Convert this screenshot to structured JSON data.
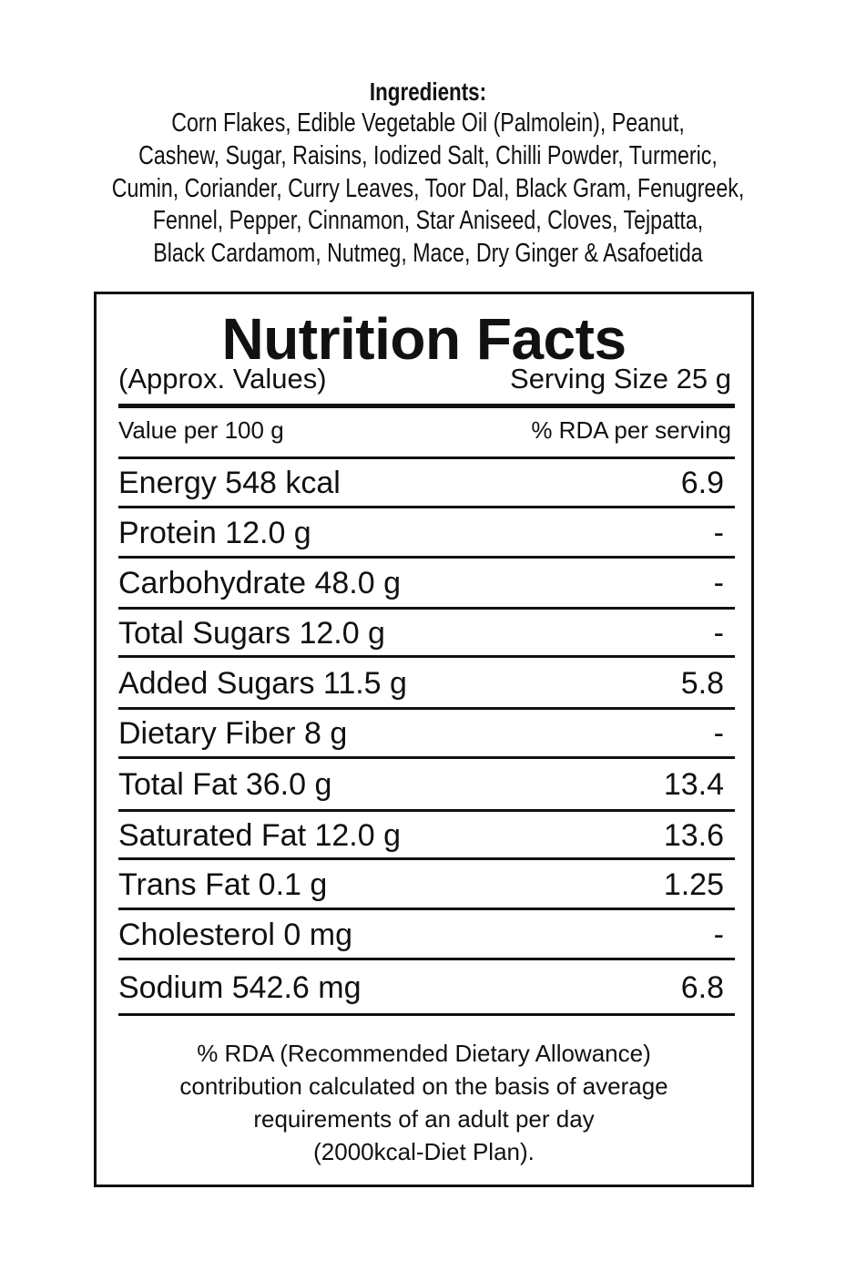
{
  "ingredients": {
    "title": "Ingredients:",
    "lines": [
      "Corn Flakes, Edible Vegetable Oil (Palmolein), Peanut,",
      "Cashew, Sugar, Raisins, Iodized Salt, Chilli Powder, Turmeric,",
      "Cumin, Coriander, Curry Leaves, Toor Dal, Black Gram, Fenugreek,",
      "Fennel, Pepper, Cinnamon, Star Aniseed, Cloves, Tejpatta,",
      "Black Cardamom, Nutmeg, Mace, Dry Ginger & Asafoetida"
    ]
  },
  "nutrition": {
    "title": "Nutrition Facts",
    "approx": "(Approx. Values)",
    "serving_size": "Serving Size 25 g",
    "col_left": "Value per 100 g",
    "col_right": "% RDA per serving",
    "rows": [
      {
        "label": "Energy 548 kcal",
        "rda": "6.9"
      },
      {
        "label": "Protein 12.0 g",
        "rda": "-"
      },
      {
        "label": "Carbohydrate 48.0 g",
        "rda": "-"
      },
      {
        "label": "Total Sugars 12.0 g",
        "rda": "-"
      },
      {
        "label": "Added Sugars 11.5 g",
        "rda": "5.8"
      },
      {
        "label": "Dietary Fiber 8 g",
        "rda": "-"
      },
      {
        "label": "Total Fat 36.0 g",
        "rda": "13.4"
      },
      {
        "label": "Saturated Fat 12.0 g",
        "rda": "13.6"
      },
      {
        "label": "Trans Fat 0.1 g",
        "rda": "1.25"
      },
      {
        "label": "Cholesterol 0 mg",
        "rda": "-"
      },
      {
        "label": "Sodium 542.6 mg",
        "rda": "6.8"
      }
    ],
    "footnote": [
      "% RDA (Recommended Dietary Allowance)",
      "contribution calculated on the basis of average",
      "requirements of an adult per day",
      "(2000kcal-Diet Plan)."
    ]
  }
}
